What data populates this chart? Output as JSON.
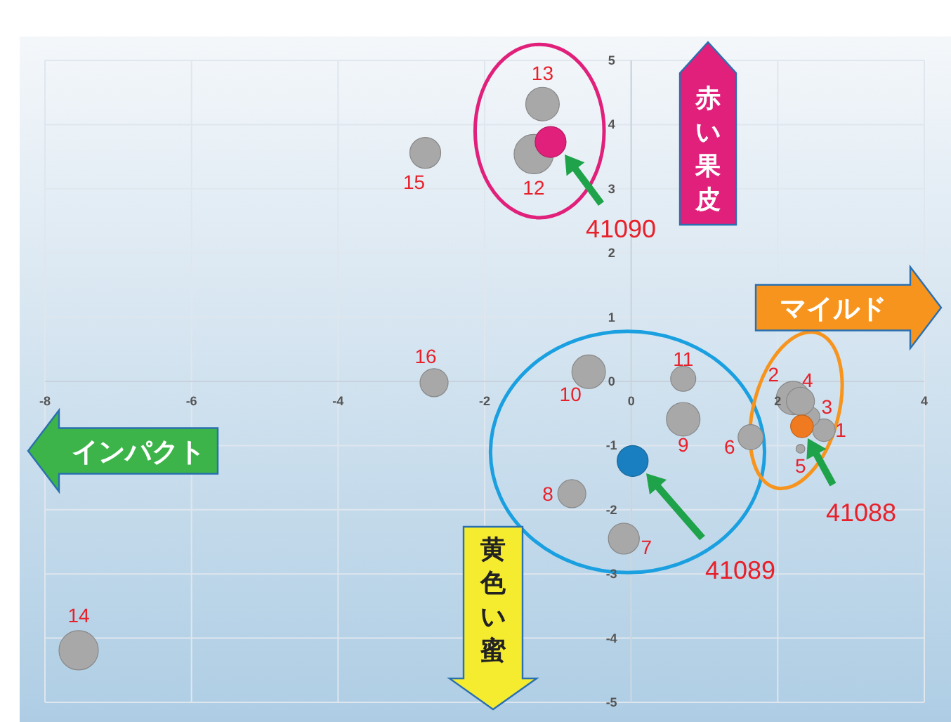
{
  "chart_data": {
    "type": "bubble",
    "xlim": [
      -8,
      4
    ],
    "ylim": [
      -5,
      5
    ],
    "xticks": [
      -8,
      -6,
      -4,
      -2,
      0,
      2,
      4
    ],
    "yticks": [
      -5,
      -4,
      -3,
      -2,
      -1,
      0,
      1,
      2,
      3,
      4,
      5
    ],
    "grid": true,
    "series": [
      {
        "x": [
          2.63,
          2.21,
          2.44,
          2.31,
          2.31,
          1.63,
          -0.1,
          -0.81,
          0.71,
          -0.58,
          0.71,
          -1.33,
          -1.21,
          -7.54,
          -2.81,
          -2.69,
          2.33,
          0.02,
          -1.1
        ],
        "values": [
          -0.76,
          -0.26,
          -0.55,
          -0.31,
          -1.05,
          -0.87,
          -2.45,
          -1.75,
          -0.59,
          0.15,
          0.04,
          3.54,
          4.32,
          -4.19,
          3.56,
          -0.02,
          -0.7,
          -1.24,
          3.73
        ],
        "sizes": [
          0.33,
          0.73,
          0.25,
          0.51,
          0.05,
          0.41,
          0.62,
          0.51,
          0.73,
          0.73,
          0.41,
          1,
          0.73,
          1,
          0.62,
          0.51,
          0.33,
          0.62,
          0.62
        ],
        "colors": [
          "#a8a8a8",
          "#a8a8a8",
          "#a8a8a8",
          "#a8a8a8",
          "#a8a8a8",
          "#a8a8a8",
          "#a8a8a8",
          "#a8a8a8",
          "#a8a8a8",
          "#a8a8a8",
          "#a8a8a8",
          "#a8a8a8",
          "#a8a8a8",
          "#a8a8a8",
          "#a8a8a8",
          "#a8a8a8",
          "#f07a20",
          "#1a7fc0",
          "#e0207a"
        ]
      }
    ],
    "annotations": [
      {
        "text": "1",
        "x": 2.63,
        "y": -0.76
      },
      {
        "text": "2",
        "x": 2.21,
        "y": -0.26
      },
      {
        "text": "3",
        "x": 2.44,
        "y": -0.55
      },
      {
        "text": "4",
        "x": 2.31,
        "y": -0.31
      },
      {
        "text": "5",
        "x": 2.31,
        "y": -1.05
      },
      {
        "text": "6",
        "x": 1.63,
        "y": -0.87
      },
      {
        "text": "7",
        "x": -0.1,
        "y": -2.45
      },
      {
        "text": "8",
        "x": -0.81,
        "y": -1.75
      },
      {
        "text": "9",
        "x": 0.71,
        "y": -0.59
      },
      {
        "text": "10",
        "x": -0.58,
        "y": 0.15
      },
      {
        "text": "11",
        "x": 0.71,
        "y": 0.04
      },
      {
        "text": "12",
        "x": -1.33,
        "y": 3.54
      },
      {
        "text": "13",
        "x": -1.21,
        "y": 4.32
      },
      {
        "text": "14",
        "x": -7.54,
        "y": -4.19
      },
      {
        "text": "15",
        "x": -2.81,
        "y": 3.56
      },
      {
        "text": "16",
        "x": -2.69,
        "y": -0.02
      },
      "41088",
      "41089",
      "41090",
      "赤い果皮",
      "マイルド",
      "インパクト",
      "黄色い蜜"
    ]
  }
}
